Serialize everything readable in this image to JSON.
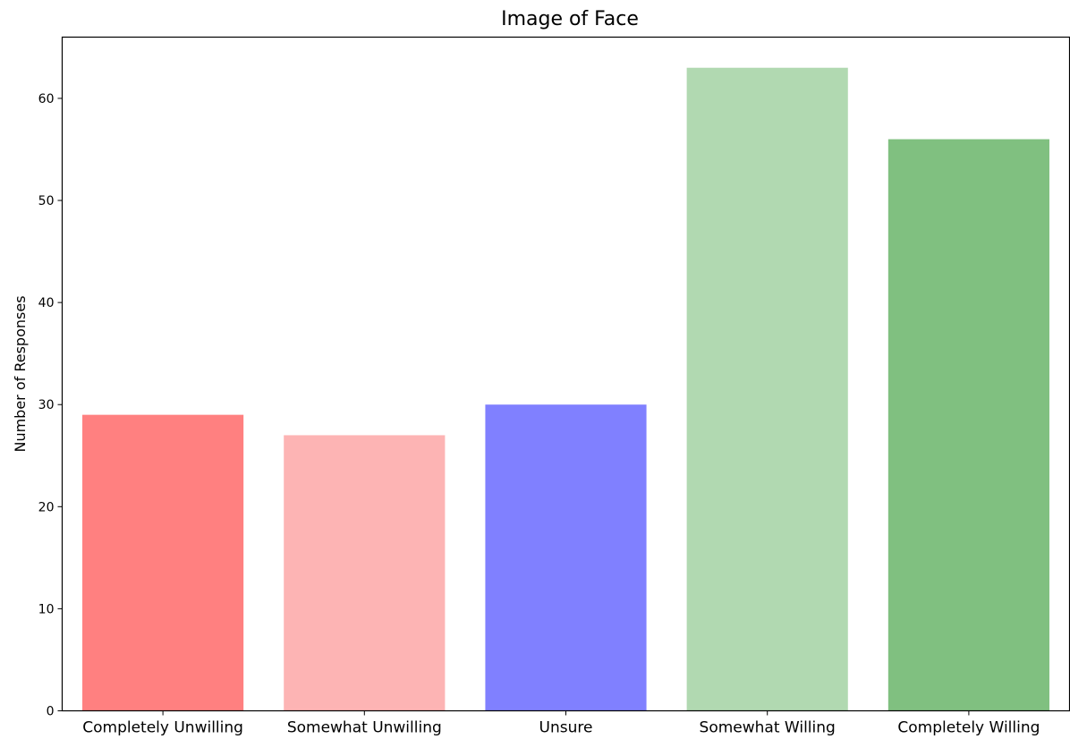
{
  "chart_data": {
    "type": "bar",
    "title": "Image of Face",
    "xlabel": "",
    "ylabel": "Number of Responses",
    "categories": [
      "Completely Unwilling",
      "Somewhat Unwilling",
      "Unsure",
      "Somewhat Willing",
      "Completely Willing"
    ],
    "values": [
      29,
      27,
      30,
      63,
      56
    ],
    "colors": [
      "#ff8080",
      "#fdb4b4",
      "#8080ff",
      "#b1d9b1",
      "#80c080"
    ],
    "ylim": [
      0,
      66
    ],
    "yticks": [
      0,
      10,
      20,
      30,
      40,
      50,
      60
    ],
    "grid": false,
    "legend": false
  }
}
